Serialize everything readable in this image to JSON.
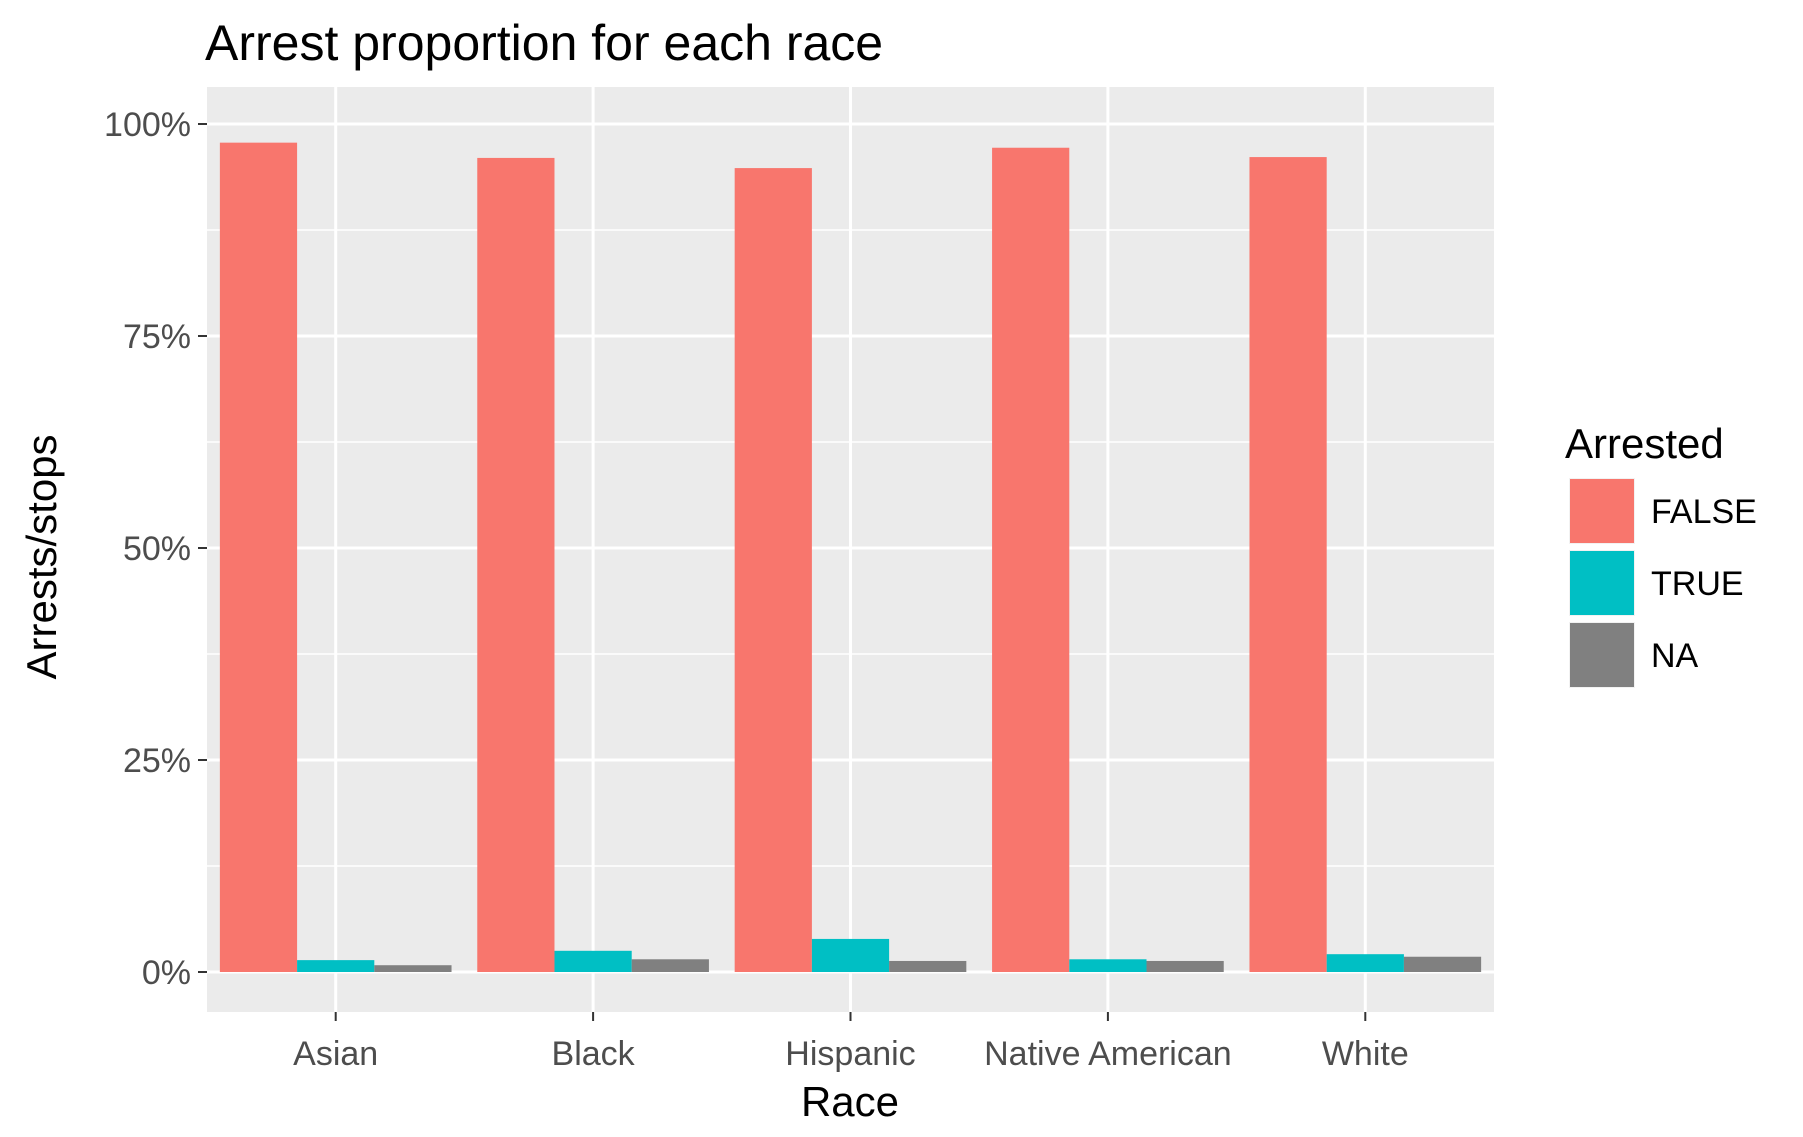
{
  "chart_data": {
    "type": "bar",
    "title": "Arrest proportion for each race",
    "xlabel": "Race",
    "ylabel": "Arrests/stops",
    "categories": [
      "Asian",
      "Black",
      "Hispanic",
      "Native American",
      "White"
    ],
    "series": [
      {
        "name": "FALSE",
        "color": "#F8766D",
        "values": [
          0.978,
          0.96,
          0.948,
          0.972,
          0.961
        ]
      },
      {
        "name": "TRUE",
        "color": "#00BFC4",
        "values": [
          0.014,
          0.025,
          0.039,
          0.015,
          0.021
        ]
      },
      {
        "name": "NA",
        "color": "#808080",
        "values": [
          0.008,
          0.015,
          0.013,
          0.013,
          0.018
        ]
      }
    ],
    "ylim": [
      0,
      1
    ],
    "yticks": [
      0,
      0.25,
      0.5,
      0.75,
      1.0
    ],
    "ytick_labels": [
      "0%",
      "25%",
      "50%",
      "75%",
      "100%"
    ],
    "legend": {
      "title": "Arrested",
      "position": "right"
    },
    "grid": true,
    "panel_background": "#EBEBEB"
  }
}
